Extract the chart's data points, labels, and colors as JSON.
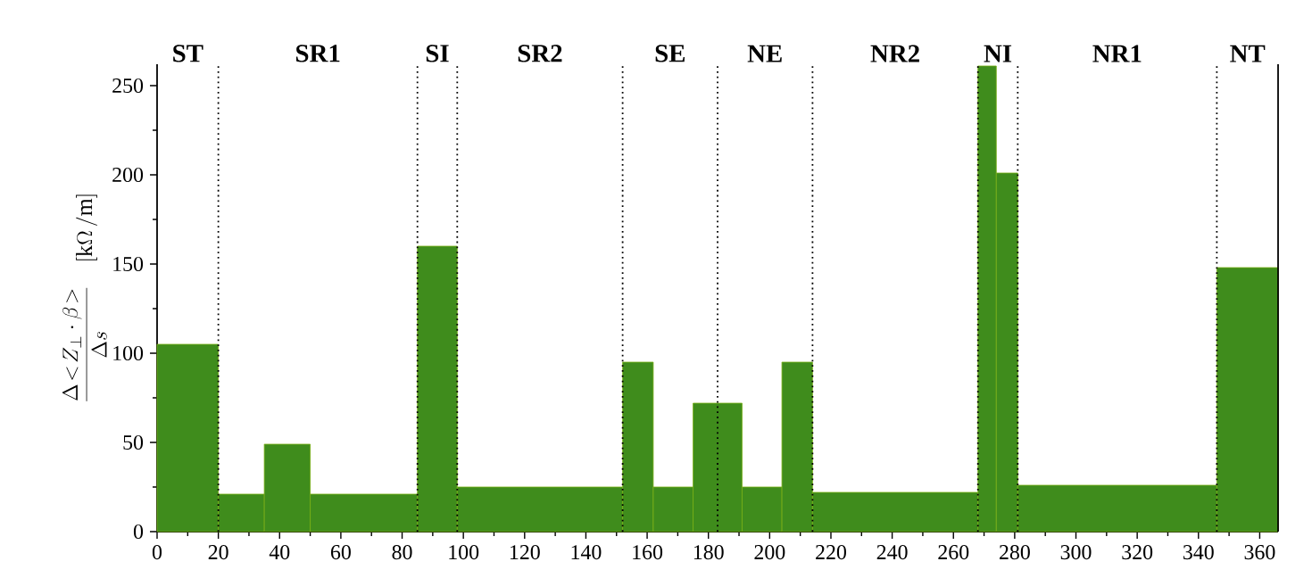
{
  "chart_data": {
    "type": "histogram",
    "ylabel": "\\frac{\\Delta\\!<\\!Z_{\\perp}\\cdot\\beta\\!>}{\\Delta s}\\quad[\\mathrm{k}\\Omega\\,/\\mathrm{m}]",
    "bins": [
      0,
      20,
      35,
      50,
      85,
      98,
      152,
      162,
      175,
      191,
      204,
      214,
      268,
      274,
      281,
      346,
      366
    ],
    "values": [
      105,
      21,
      49,
      21,
      160,
      25,
      95,
      25,
      72,
      25,
      95,
      22,
      261,
      201,
      26,
      148
    ],
    "color": "#3f8c1c",
    "xlim": [
      0,
      366
    ],
    "ylim": [
      0,
      262
    ],
    "xticks": [
      0,
      20,
      40,
      60,
      80,
      100,
      120,
      140,
      160,
      180,
      200,
      220,
      240,
      260,
      280,
      300,
      320,
      340,
      360
    ],
    "yticks": [
      0,
      50,
      100,
      150,
      200,
      250
    ],
    "ref_lines": [
      {
        "axis": "x",
        "value": 20,
        "line_style": "dotted"
      },
      {
        "axis": "x",
        "value": 85,
        "line_style": "dotted"
      },
      {
        "axis": "x",
        "value": 98,
        "line_style": "dotted"
      },
      {
        "axis": "x",
        "value": 152,
        "line_style": "dotted"
      },
      {
        "axis": "x",
        "value": 183,
        "line_style": "dotted"
      },
      {
        "axis": "x",
        "value": 214,
        "line_style": "dotted"
      },
      {
        "axis": "x",
        "value": 268,
        "line_style": "dotted"
      },
      {
        "axis": "x",
        "value": 281,
        "line_style": "dotted"
      },
      {
        "axis": "x",
        "value": 346,
        "line_style": "dotted"
      }
    ],
    "annotations": [
      "ST",
      "SR1",
      "SI",
      "SR2",
      "SE",
      "NE",
      "NR2",
      "NI",
      "NR1",
      "NT"
    ]
  }
}
